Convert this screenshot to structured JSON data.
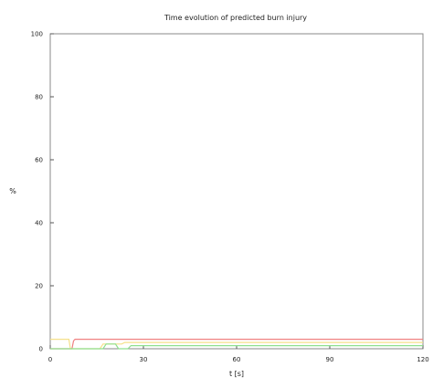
{
  "chart_data": {
    "type": "line",
    "title": "Time evolution of predicted burn injury",
    "xlabel": "t [s]",
    "ylabel": "%",
    "xlim": [
      0,
      120
    ],
    "ylim": [
      0,
      100
    ],
    "xticks": [
      "0",
      "30",
      "60",
      "90",
      "120"
    ],
    "yticks": [
      "0",
      "20",
      "40",
      "60",
      "80",
      "100"
    ],
    "grid": false,
    "legend": "none",
    "series": [
      {
        "color": "#f08080",
        "x": [
          0,
          7,
          7.5,
          8,
          120
        ],
        "y": [
          0,
          0,
          2.5,
          3,
          3
        ]
      },
      {
        "color": "#f5e08a",
        "x": [
          0,
          6,
          6.5,
          16,
          17,
          23,
          24,
          120
        ],
        "y": [
          3,
          3,
          0,
          0,
          1.5,
          1.5,
          2,
          2
        ]
      },
      {
        "color": "#8fe08f",
        "x": [
          0,
          17,
          18,
          21,
          22,
          25,
          26,
          120
        ],
        "y": [
          0,
          0,
          1.5,
          1.5,
          0,
          0,
          1,
          1
        ]
      }
    ]
  }
}
